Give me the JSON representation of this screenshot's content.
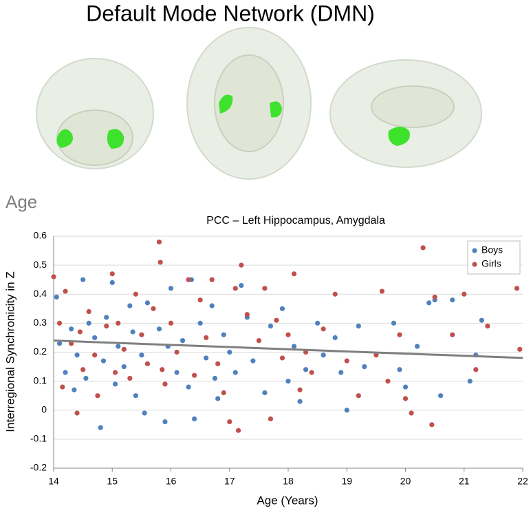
{
  "title": "Default Mode Network (DMN)",
  "section_label": "Age",
  "chart_data": {
    "type": "scatter",
    "title": "PCC – Left Hippocampus, Amygdala",
    "x_label": "Age (Years)",
    "y_label": "Interregional Synchronicity in Z",
    "xlim": [
      14,
      22
    ],
    "ylim": [
      -0.2,
      0.6
    ],
    "xticks": [
      14,
      15,
      16,
      17,
      18,
      19,
      20,
      21,
      22
    ],
    "yticks": [
      -0.2,
      -0.1,
      0,
      0.1,
      0.2,
      0.3,
      0.4,
      0.5,
      0.6
    ],
    "grid": true,
    "legend": "upper right",
    "series": [
      {
        "name": "Boys",
        "color": "#4f81bd",
        "x": [
          14.05,
          14.1,
          14.2,
          14.3,
          14.35,
          14.4,
          14.5,
          14.55,
          14.6,
          14.7,
          14.8,
          14.85,
          14.9,
          15.0,
          15.05,
          15.1,
          15.2,
          15.3,
          15.35,
          15.4,
          15.5,
          15.55,
          15.6,
          15.8,
          15.9,
          15.95,
          16.0,
          16.1,
          16.2,
          16.3,
          16.35,
          16.4,
          16.5,
          16.6,
          16.7,
          16.75,
          16.8,
          16.9,
          17.0,
          17.1,
          17.2,
          17.3,
          17.4,
          17.6,
          17.7,
          17.9,
          18.0,
          18.1,
          18.2,
          18.3,
          18.5,
          18.6,
          18.8,
          18.9,
          19.0,
          19.2,
          19.3,
          19.8,
          19.9,
          20.0,
          20.2,
          20.4,
          20.5,
          20.6,
          20.8,
          21.1,
          21.2,
          21.3
        ],
        "values": [
          0.39,
          0.23,
          0.13,
          0.28,
          0.07,
          0.19,
          0.45,
          0.11,
          0.3,
          0.25,
          -0.06,
          0.17,
          0.32,
          0.44,
          0.09,
          0.22,
          0.15,
          0.36,
          0.27,
          0.05,
          0.19,
          -0.01,
          0.37,
          0.28,
          -0.04,
          0.22,
          0.42,
          0.13,
          0.24,
          0.08,
          0.45,
          -0.03,
          0.3,
          0.18,
          0.36,
          0.11,
          0.04,
          0.26,
          0.2,
          0.13,
          0.43,
          0.32,
          0.17,
          0.06,
          0.29,
          0.35,
          0.1,
          0.22,
          0.03,
          0.14,
          0.3,
          0.19,
          0.25,
          0.13,
          0.0,
          0.29,
          0.15,
          0.3,
          0.14,
          0.08,
          0.22,
          0.37,
          0.38,
          0.05,
          0.38,
          0.1,
          0.19,
          0.31
        ]
      },
      {
        "name": "Girls",
        "color": "#c0504d",
        "x": [
          14.0,
          14.1,
          14.15,
          14.2,
          14.3,
          14.4,
          14.45,
          14.5,
          14.6,
          14.7,
          14.75,
          14.9,
          15.0,
          15.05,
          15.1,
          15.2,
          15.3,
          15.4,
          15.5,
          15.6,
          15.7,
          15.8,
          15.82,
          15.85,
          15.9,
          16.0,
          16.1,
          16.3,
          16.4,
          16.5,
          16.6,
          16.7,
          16.8,
          16.9,
          17.0,
          17.1,
          17.15,
          17.2,
          17.3,
          17.5,
          17.6,
          17.7,
          17.8,
          17.9,
          18.0,
          18.1,
          18.2,
          18.3,
          18.4,
          18.6,
          18.8,
          19.0,
          19.2,
          19.5,
          19.6,
          19.7,
          19.9,
          20.0,
          20.1,
          20.3,
          20.45,
          20.5,
          20.8,
          21.0,
          21.2,
          21.4,
          21.9,
          21.95
        ],
        "values": [
          0.46,
          0.3,
          0.08,
          0.41,
          0.23,
          -0.01,
          0.27,
          0.14,
          0.34,
          0.19,
          0.05,
          0.29,
          0.47,
          0.13,
          0.3,
          0.21,
          0.11,
          0.4,
          0.26,
          0.16,
          0.35,
          0.58,
          0.51,
          0.14,
          0.09,
          0.3,
          0.2,
          0.45,
          0.12,
          0.38,
          0.25,
          0.45,
          0.16,
          0.06,
          -0.04,
          0.42,
          -0.07,
          0.5,
          0.33,
          0.24,
          0.42,
          -0.03,
          0.31,
          0.18,
          0.26,
          0.47,
          0.07,
          0.2,
          0.13,
          0.28,
          0.4,
          0.17,
          0.05,
          0.19,
          0.41,
          0.1,
          0.26,
          0.04,
          -0.01,
          0.56,
          -0.05,
          0.39,
          0.26,
          0.4,
          0.14,
          0.29,
          0.42,
          0.21
        ]
      }
    ],
    "trendline": {
      "color": "#7f7f7f",
      "x": [
        14,
        22
      ],
      "values": [
        0.24,
        0.18
      ]
    }
  }
}
